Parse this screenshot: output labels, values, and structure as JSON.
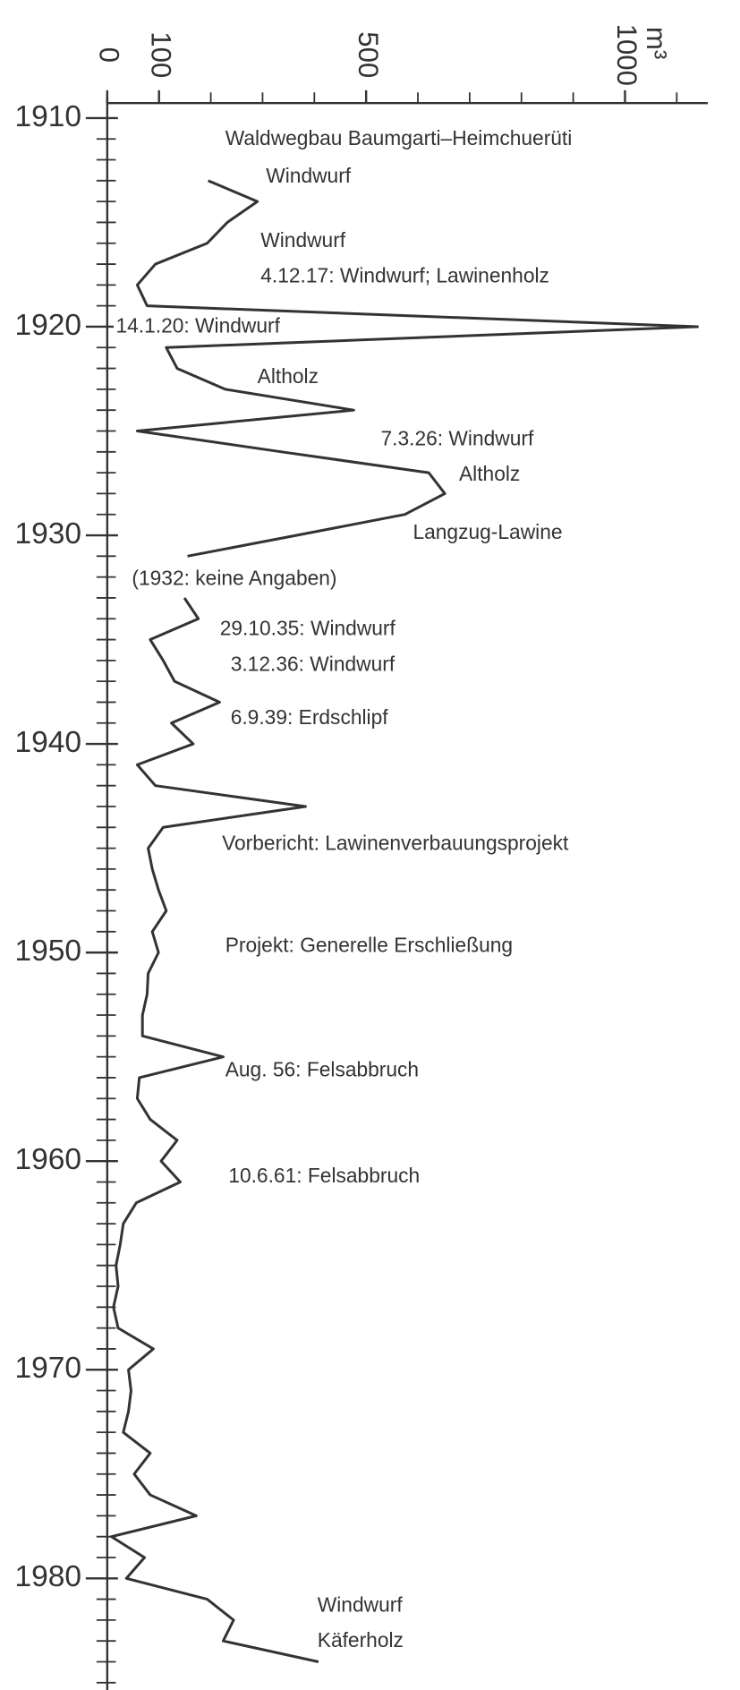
{
  "chart_data": {
    "type": "line",
    "orientation": "vertical-time",
    "x_unit": "m³",
    "x": [
      1913,
      1914,
      1915,
      1916,
      1917,
      1918,
      1919,
      1920,
      1921,
      1922,
      1923,
      1924,
      1925,
      1926,
      1927,
      1928,
      1929,
      1930,
      1931,
      1932,
      1933,
      1934,
      1935,
      1936,
      1937,
      1938,
      1939,
      1940,
      1941,
      1942,
      1943,
      1944,
      1945,
      1946,
      1947,
      1948,
      1949,
      1950,
      1951,
      1952,
      1953,
      1954,
      1955,
      1956,
      1957,
      1958,
      1959,
      1960,
      1961,
      1962,
      1963,
      1964,
      1965,
      1966,
      1967,
      1968,
      1969,
      1970,
      1971,
      1972,
      1973,
      1974,
      1975,
      1976,
      1977,
      1978,
      1979,
      1980,
      1981,
      1982,
      1983,
      1984
    ],
    "series": [
      {
        "color": "#333333",
        "values": [
          195,
          290,
          232,
          193,
          93,
          58,
          77,
          1140,
          114,
          135,
          228,
          476,
          58,
          337,
          621,
          652,
          575,
          366,
          155,
          null,
          149,
          176,
          83,
          108,
          130,
          217,
          124,
          166,
          58,
          93,
          383,
          108,
          79,
          87,
          99,
          114,
          87,
          99,
          79,
          77,
          68,
          68,
          224,
          62,
          58,
          83,
          135,
          104,
          141,
          56,
          31,
          25,
          17,
          21,
          12,
          21,
          89,
          41,
          46,
          41,
          31,
          83,
          52,
          83,
          172,
          8,
          72,
          37,
          193,
          244,
          224,
          408
        ]
      }
    ],
    "xlim": [
      0,
      1160
    ],
    "xticks": [
      0,
      100,
      500,
      1000
    ],
    "xticks_minor": [
      200,
      300,
      400,
      600,
      700,
      800,
      900,
      1100
    ],
    "ylim": [
      1909,
      1985.5
    ],
    "yticks": [
      1910,
      1920,
      1930,
      1940,
      1950,
      1960,
      1970,
      1980
    ],
    "yticks_minor": [
      1911,
      1912,
      1913,
      1914,
      1915,
      1916,
      1917,
      1918,
      1919,
      1921,
      1922,
      1923,
      1924,
      1925,
      1926,
      1927,
      1928,
      1929,
      1931,
      1932,
      1933,
      1934,
      1935,
      1936,
      1937,
      1938,
      1939,
      1941,
      1942,
      1943,
      1944,
      1945,
      1946,
      1947,
      1948,
      1949,
      1951,
      1952,
      1953,
      1954,
      1955,
      1956,
      1957,
      1958,
      1959,
      1961,
      1962,
      1963,
      1964,
      1965,
      1966,
      1967,
      1968,
      1969,
      1971,
      1972,
      1973,
      1974,
      1975,
      1976,
      1977,
      1978,
      1979,
      1981,
      1982,
      1983,
      1984,
      1985
    ],
    "annotations": [
      "Waldwegbau Baumgarti–Heimchuerüti",
      "Windwurf",
      "Windwurf",
      "4.12.17: Windwurf; Lawinenholz",
      "14.1.20: Windwurf",
      "Altholz",
      "7.3.26: Windwurf",
      "Altholz",
      "Langzug-Lawine",
      "(1932: keine Angaben)",
      "29.10.35: Windwurf",
      "3.12.36: Windwurf",
      "6.9.39: Erdschlipf",
      "Vorbericht: Lawinenverbauungsprojekt",
      "Projekt: Generelle Erschließung",
      "Aug. 56: Felsabbruch",
      "10.6.61: Felsabbruch",
      "Windwurf",
      "Käferholz"
    ]
  }
}
